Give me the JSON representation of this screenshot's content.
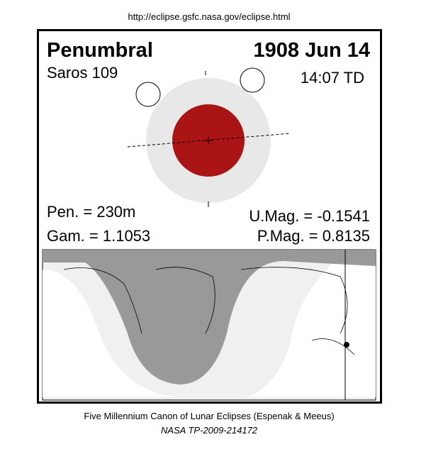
{
  "header": {
    "url": "http://eclipse.gsfc.nasa.gov/eclipse.html"
  },
  "eclipse": {
    "type": "Penumbral",
    "date": "1908 Jun 14",
    "saros": "Saros 109",
    "time": "14:07 TD"
  },
  "parameters": {
    "pen": "Pen. = 230m",
    "gam": "Gam. = 1.1053",
    "umag": "U.Mag. = -0.1541",
    "pmag": "P.Mag. = 0.8135"
  },
  "footer": {
    "credit": "Five Millennium Canon of Lunar Eclipses (Espenak & Meeus)",
    "reference": "NASA TP-2009-214172"
  }
}
